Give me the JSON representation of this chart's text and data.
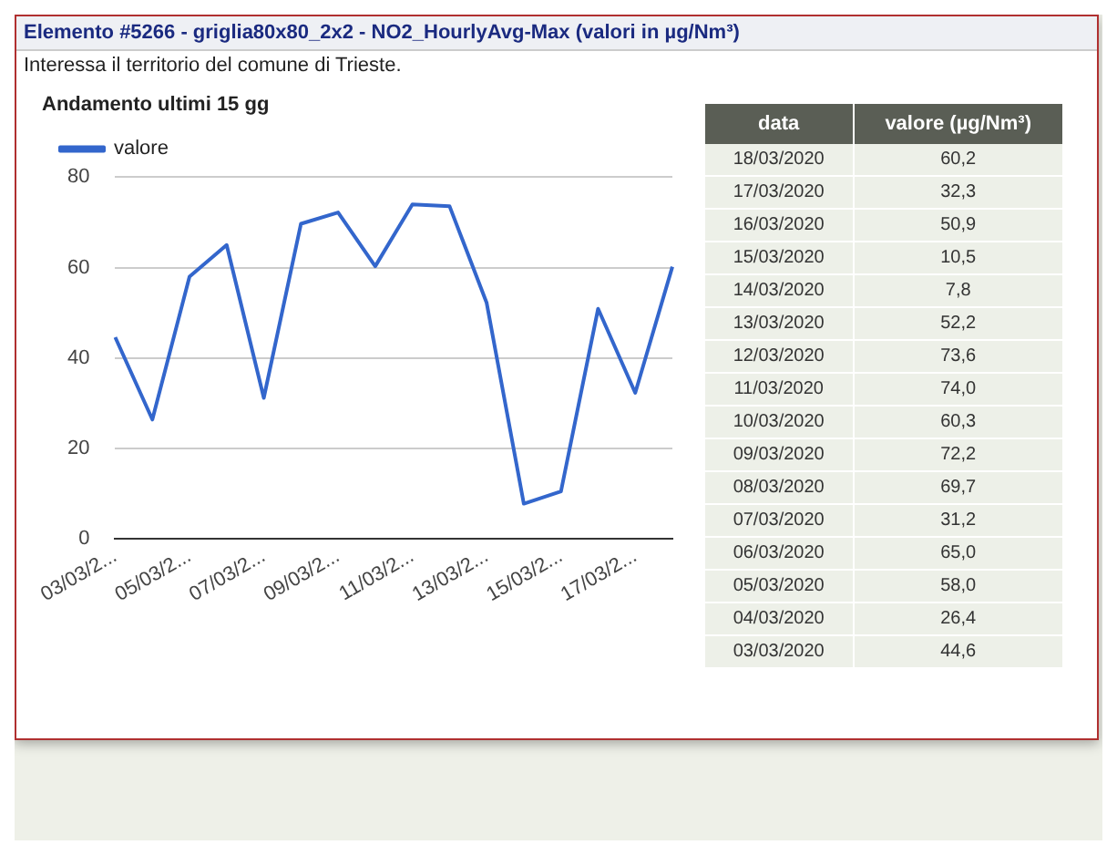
{
  "chart_data": [
    {
      "type": "line",
      "title": "Elemento #5266 - griglia80x80_2x2 - NO2_HourlyAvg-Max (valori in µg/Nm³)",
      "subtitle": "Interessa il territorio del comune di Trieste.",
      "annotations": [
        "Andamento ultimi 15 gg"
      ],
      "categories": [
        "03/03/2...",
        null,
        "05/03/2...",
        null,
        "07/03/2...",
        null,
        "09/03/2...",
        null,
        "11/03/2...",
        null,
        "13/03/2...",
        null,
        "15/03/2...",
        null,
        "17/03/2...",
        null
      ],
      "series": [
        {
          "name": "valore",
          "color": "#3366cc",
          "values": [
            44.6,
            26.4,
            58.0,
            65.0,
            31.2,
            69.7,
            72.2,
            60.3,
            74.0,
            73.6,
            52.2,
            7.8,
            10.5,
            50.9,
            32.3,
            60.2
          ]
        }
      ],
      "ylim": [
        0,
        80
      ],
      "yticks": [
        0,
        20,
        40,
        60,
        80
      ],
      "grid": "y",
      "legend": "top left",
      "marker": "none",
      "line_style": "solid"
    },
    {
      "type": "other",
      "annotations": [
        "data",
        "valore (µg/Nm³)"
      ],
      "categories": [
        "18/03/2020",
        "17/03/2020",
        "16/03/2020",
        "15/03/2020",
        "14/03/2020",
        "13/03/2020",
        "12/03/2020",
        "11/03/2020",
        "10/03/2020",
        "09/03/2020",
        "08/03/2020",
        "07/03/2020",
        "06/03/2020",
        "05/03/2020",
        "04/03/2020",
        "03/03/2020"
      ],
      "value_labels": [
        "60,2",
        "32,3",
        "50,9",
        "10,5",
        "7,8",
        "52,2",
        "73,6",
        "74,0",
        "60,3",
        "72,2",
        "69,7",
        "31,2",
        "65,0",
        "58,0",
        "26,4",
        "44,6"
      ]
    }
  ]
}
